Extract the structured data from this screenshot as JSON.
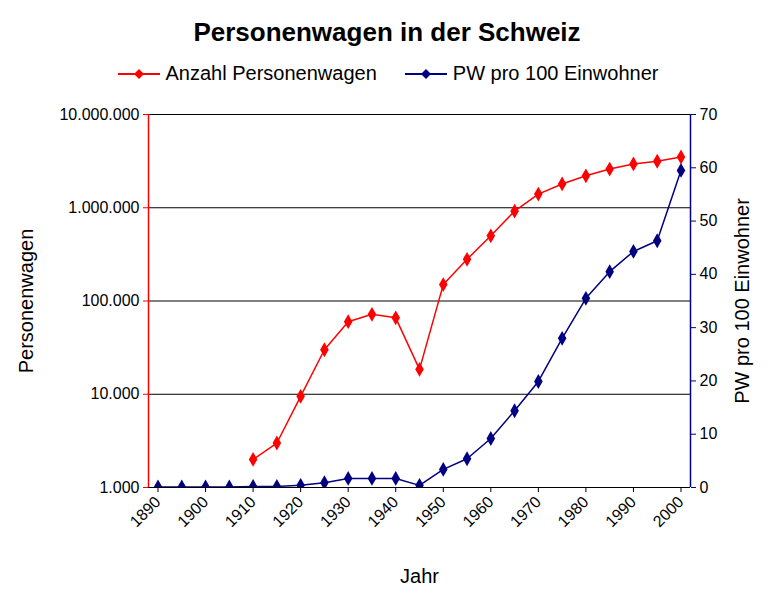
{
  "chart_data": {
    "type": "line",
    "title": "Personenwagen in der Schweiz",
    "x_label": "Jahr",
    "y_label": "Personenwagen",
    "y2_label": "PW pro 100 Einwohner",
    "x": [
      1890,
      1895,
      1900,
      1905,
      1910,
      1915,
      1920,
      1925,
      1930,
      1935,
      1940,
      1945,
      1950,
      1955,
      1960,
      1965,
      1970,
      1975,
      1980,
      1985,
      1990,
      1995,
      2000
    ],
    "xlim": [
      1888,
      2002
    ],
    "xticks": [
      1890,
      1900,
      1910,
      1920,
      1930,
      1940,
      1950,
      1960,
      1970,
      1980,
      1990,
      2000
    ],
    "log": "y",
    "ylim": [
      1000,
      10000000
    ],
    "yticks": [
      {
        "value": 1000,
        "label": "1.000"
      },
      {
        "value": 10000,
        "label": "10.000"
      },
      {
        "value": 100000,
        "label": "100.000"
      },
      {
        "value": 1000000,
        "label": "1.000.000"
      },
      {
        "value": 10000000,
        "label": "10.000.000"
      }
    ],
    "y2lim": [
      0,
      70
    ],
    "y2ticks": [
      0,
      10,
      20,
      30,
      40,
      50,
      60,
      70
    ],
    "grid": true,
    "legend": "top",
    "series": [
      {
        "name": "Anzahl Personenwagen",
        "color": "#ff0000",
        "marker": "diamond",
        "values": [
          null,
          null,
          null,
          null,
          2000,
          3000,
          9500,
          30000,
          60000,
          72000,
          66000,
          18500,
          150000,
          280000,
          500000,
          920000,
          1400000,
          1800000,
          2200000,
          2600000,
          2950000,
          3150000,
          3500000
        ]
      },
      {
        "name": "PW pro 100 Einwohner",
        "color": "#000080",
        "marker": "diamond",
        "axis": "y2",
        "values": [
          0.1,
          0.1,
          0.1,
          0.1,
          0.2,
          0.2,
          0.4,
          0.9,
          1.7,
          1.7,
          1.7,
          0.4,
          3.4,
          5.4,
          9.2,
          14.4,
          19.9,
          28,
          35.5,
          40.5,
          44.3,
          46.3,
          59.5
        ]
      }
    ]
  }
}
